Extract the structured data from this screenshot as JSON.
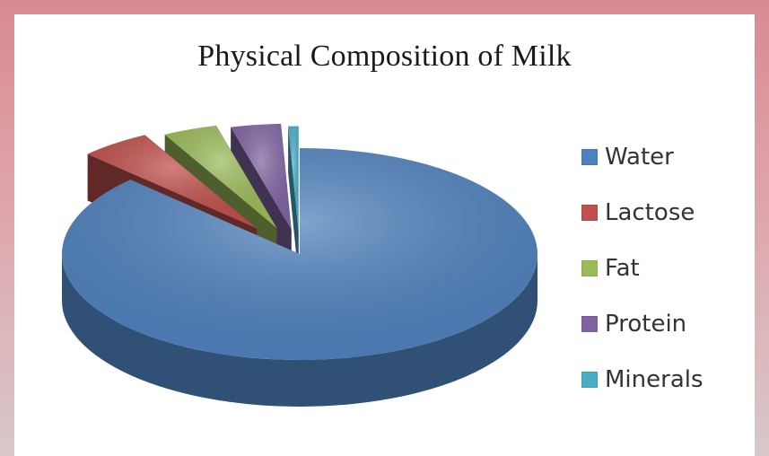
{
  "chart_data": {
    "type": "pie",
    "title": "Physical Composition of Milk",
    "categories": [
      "Water",
      "Lactose",
      "Fat",
      "Protein",
      "Minerals"
    ],
    "values": [
      87.4,
      4.8,
      3.7,
      3.4,
      0.7
    ],
    "unit": "%",
    "exploded": [
      "Lactose",
      "Fat",
      "Protein",
      "Minerals"
    ],
    "style": "3d",
    "legend": "right",
    "colors": {
      "Water": "#4f81bd",
      "Lactose": "#c0504d",
      "Fat": "#9bbb59",
      "Protein": "#8064a2",
      "Minerals": "#4bacc6"
    }
  }
}
